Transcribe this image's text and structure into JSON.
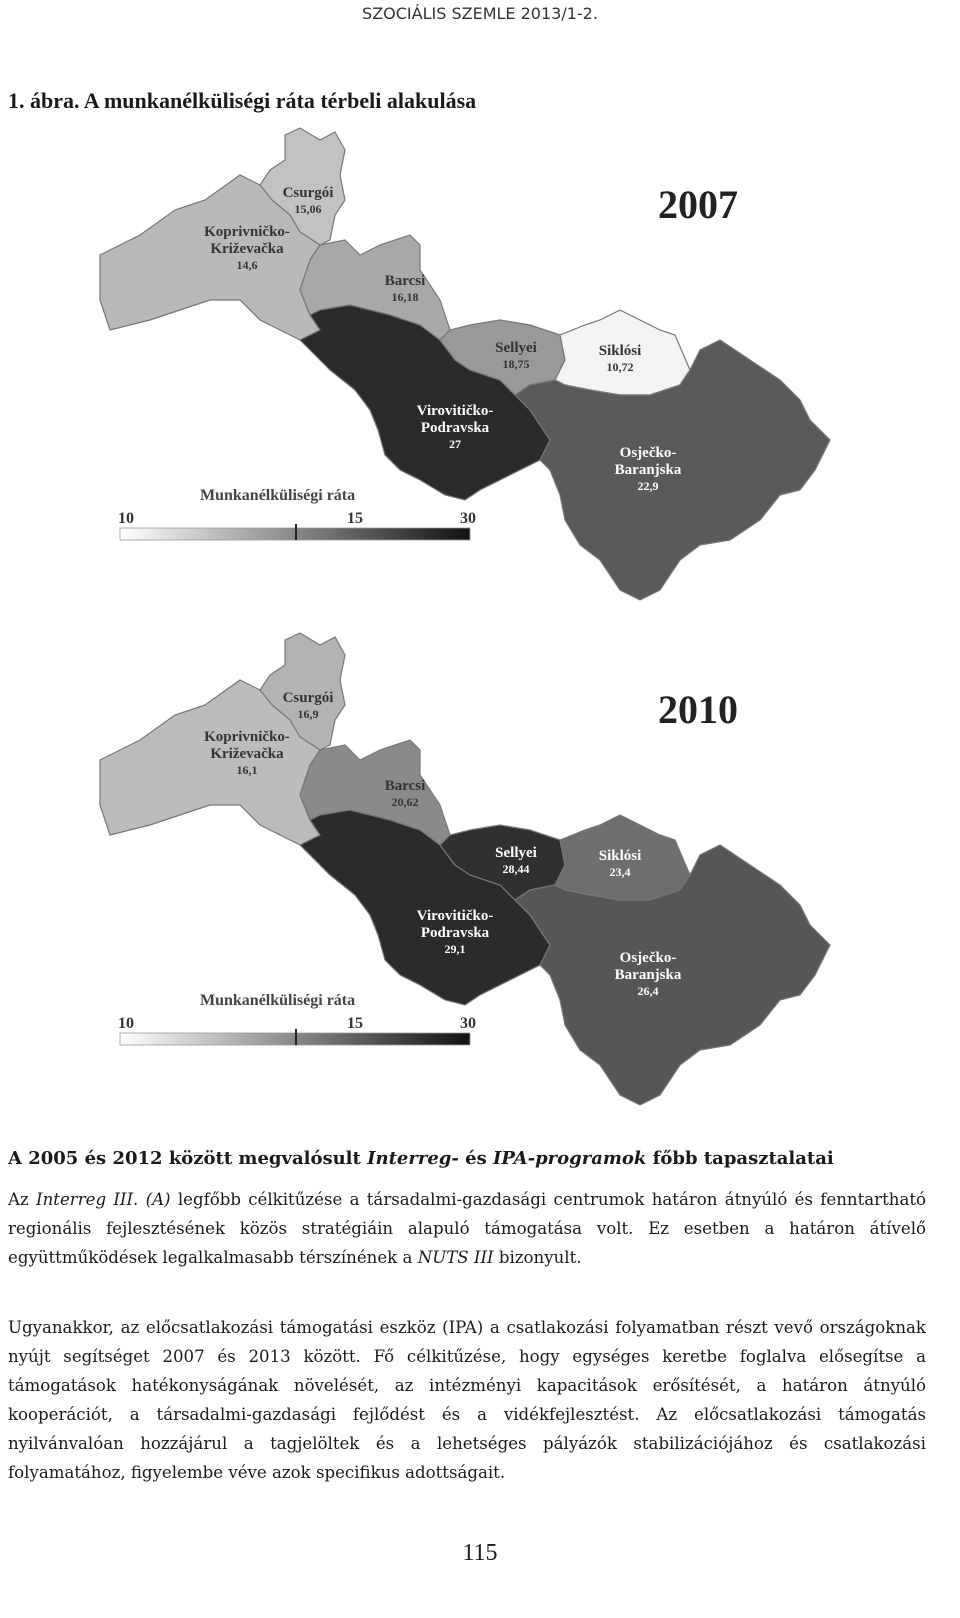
{
  "header": {
    "title": "SZOCIÁLIS SZEMLE 2013/1-2."
  },
  "figure": {
    "title": "1. ábra. A munkanélküliségi ráta térbeli alakulása",
    "maps": [
      {
        "year": "2007",
        "legend": {
          "title": "Munkanélküliségi ráta",
          "ticks": [
            "10",
            "15",
            "30"
          ]
        },
        "regions": [
          {
            "name": [
              "Csurgói"
            ],
            "value": "15,06",
            "color": "#c2c2c2"
          },
          {
            "name": [
              "Koprivničko-",
              "Križevačka"
            ],
            "value": "14,6",
            "color": "#b9b9b9"
          },
          {
            "name": [
              "Barcsi"
            ],
            "value": "16,18",
            "color": "#a8a8a8"
          },
          {
            "name": [
              "Virovitičko-",
              "Podravska"
            ],
            "value": "27",
            "color": "#2b2b2b"
          },
          {
            "name": [
              "Sellyei"
            ],
            "value": "18,75",
            "color": "#999999"
          },
          {
            "name": [
              "Siklósi"
            ],
            "value": "10,72",
            "color": "#f3f3f3"
          },
          {
            "name": [
              "Osječko-",
              "Baranjska"
            ],
            "value": "22,9",
            "color": "#5a5a5a"
          }
        ]
      },
      {
        "year": "2010",
        "legend": {
          "title": "Munkanélküliségi ráta",
          "ticks": [
            "10",
            "15",
            "30"
          ]
        },
        "regions": [
          {
            "name": [
              "Csurgói"
            ],
            "value": "16,9",
            "color": "#b3b3b3"
          },
          {
            "name": [
              "Koprivničko-",
              "Križevačka"
            ],
            "value": "16,1",
            "color": "#bcbcbc"
          },
          {
            "name": [
              "Barcsi"
            ],
            "value": "20,62",
            "color": "#8a8a8a"
          },
          {
            "name": [
              "Virovitičko-",
              "Podravska"
            ],
            "value": "29,1",
            "color": "#2b2b2b"
          },
          {
            "name": [
              "Sellyei"
            ],
            "value": "28,44",
            "color": "#303030"
          },
          {
            "name": [
              "Siklósi"
            ],
            "value": "23,4",
            "color": "#6e6e6e"
          },
          {
            "name": [
              "Osječko-",
              "Baranjska"
            ],
            "value": "26,4",
            "color": "#565656"
          }
        ]
      }
    ]
  },
  "heading": [
    {
      "text": "A 2005 és 2012 között megvalósult "
    },
    {
      "text": "Interreg-",
      "italic": true
    },
    {
      "text": " és "
    },
    {
      "text": "IPA-programok",
      "italic": true
    },
    {
      "text": " főbb tapasztalatai"
    }
  ],
  "paragraphs": [
    [
      {
        "text": "Az "
      },
      {
        "text": "Interreg III. (A)",
        "italic": true
      },
      {
        "text": " legfőbb célkitűzése a társadalmi-gazdasági centrumok határon átnyúló és fenntartható regionális fejlesztésének közös stratégiáin alapuló támogatása volt. Ez esetben a határon átívelő együttműködések legalkalmasabb térszínének a "
      },
      {
        "text": "NUTS III",
        "italic": true
      },
      {
        "text": " bizonyult."
      }
    ],
    [
      {
        "text": "Ugyanakkor, az előcsatlakozási támogatási eszköz (IPA) a csatlakozási folyamatban részt vevő országoknak nyújt segítséget 2007 és 2013 között. Fő célkitűzése, hogy egységes keretbe foglalva elősegítse a támogatások hatékonyságának növelését, az intézményi kapacitások erősítését, a határon átnyúló kooperációt, a társadalmi-gazdasági fejlődést és a vidékfejlesztést. Az előcsatlakozási támogatás nyilvánvalóan hozzájárul a tagjelöltek és a lehetséges pályázók stabilizációjához és csatlakozási folyamatához, figyelembe véve azok specifikus adottságait."
      }
    ]
  ],
  "footer": {
    "page": "115"
  }
}
